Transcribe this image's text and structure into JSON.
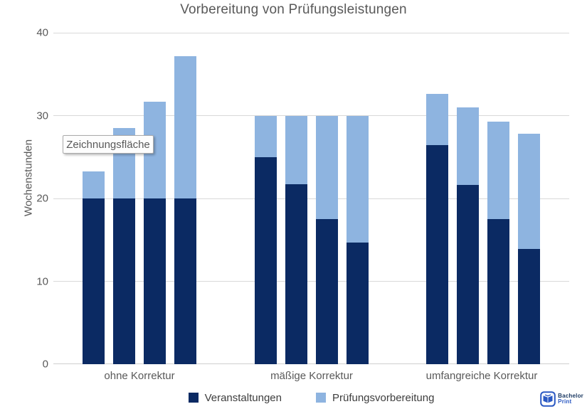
{
  "title": "Vorbereitung von Prüfungsleistungen",
  "tooltip_label": "Zeichnungsfläche",
  "colors": {
    "series_dark": "#0b2a63",
    "series_light": "#8eb4e0",
    "gridline": "#d9d9d9",
    "axis_text": "#595959",
    "legend_text": "#3d3d3d",
    "logo_blue": "#2b59c3"
  },
  "watermark": {
    "line1": "Bachelor",
    "line2": "Print"
  },
  "chart_data": {
    "type": "bar",
    "variant": "grouped-stacked",
    "title": "Vorbereitung von Prüfungsleistungen",
    "xlabel": "",
    "ylabel": "Wochenstunden",
    "ylim": [
      0,
      40
    ],
    "yticks": [
      0,
      10,
      20,
      30,
      40
    ],
    "grid": true,
    "legend_position": "bottom",
    "categories": [
      "ohne Korrektur",
      "mäßige Korrektur",
      "umfangreiche Korrektur"
    ],
    "bars_per_category": 4,
    "series": [
      {
        "name": "Veranstaltungen",
        "color": "#0b2a63",
        "values": [
          [
            20,
            20,
            20,
            20
          ],
          [
            25,
            21.7,
            17.5,
            14.7
          ],
          [
            26.4,
            21.6,
            17.5,
            13.9
          ]
        ]
      },
      {
        "name": "Prüfungsvorbereitung",
        "color": "#8eb4e0",
        "values": [
          [
            3.3,
            8.5,
            11.7,
            17.2
          ],
          [
            5,
            8.3,
            12.5,
            15.3
          ],
          [
            6.2,
            9.4,
            11.8,
            13.9
          ]
        ]
      }
    ],
    "stacked_totals": [
      [
        23.3,
        28.5,
        31.7,
        37.2
      ],
      [
        30,
        30,
        30,
        30
      ],
      [
        32.6,
        31,
        29.3,
        27.8
      ]
    ]
  }
}
